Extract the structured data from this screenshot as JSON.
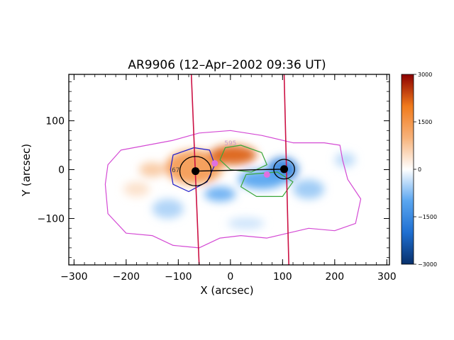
{
  "chart_data": {
    "type": "heatmap",
    "title": "AR9906 (12–Apr–2002 09:36 UT)",
    "xlabel": "X (arcsec)",
    "ylabel": "Y (arcsec)",
    "xlim": [
      -310,
      305
    ],
    "ylim": [
      -195,
      195
    ],
    "x_ticks": [
      {
        "value": -300,
        "label": "−300"
      },
      {
        "value": -200,
        "label": "−200"
      },
      {
        "value": -100,
        "label": "−100"
      },
      {
        "value": 0,
        "label": "0"
      },
      {
        "value": 100,
        "label": "100"
      },
      {
        "value": 200,
        "label": "200"
      },
      {
        "value": 300,
        "label": "300"
      }
    ],
    "y_ticks": [
      {
        "value": 100,
        "label": "100"
      },
      {
        "value": 0,
        "label": "0"
      },
      {
        "value": -100,
        "label": "−100"
      }
    ],
    "colorbar": {
      "range": [
        -3000,
        3000
      ],
      "ticks": [
        {
          "value": 3000,
          "label": "3000"
        },
        {
          "value": 1500,
          "label": "1500"
        },
        {
          "value": 0,
          "label": "0"
        },
        {
          "value": -1500,
          "label": "−1500"
        },
        {
          "value": -3000,
          "label": "−3000"
        }
      ],
      "colors": [
        "#08306b",
        "#1f6fd1",
        "#5aa6f0",
        "#ffffff",
        "#f7b27a",
        "#f07a1c",
        "#8b0000"
      ]
    },
    "field_blobs": [
      {
        "cx": -70,
        "cy": 5,
        "rx": 55,
        "ry": 35,
        "value": 1400
      },
      {
        "cx": 5,
        "cy": 30,
        "rx": 45,
        "ry": 20,
        "value": 2200
      },
      {
        "cx": -150,
        "cy": 0,
        "rx": 25,
        "ry": 15,
        "value": 700
      },
      {
        "cx": 100,
        "cy": 0,
        "rx": 30,
        "ry": 25,
        "value": -1600
      },
      {
        "cx": 60,
        "cy": -20,
        "rx": 45,
        "ry": 20,
        "value": -1000
      },
      {
        "cx": -20,
        "cy": -50,
        "rx": 30,
        "ry": 15,
        "value": -900
      },
      {
        "cx": 150,
        "cy": -40,
        "rx": 30,
        "ry": 20,
        "value": -600
      },
      {
        "cx": -120,
        "cy": -80,
        "rx": 30,
        "ry": 20,
        "value": -500
      },
      {
        "cx": -180,
        "cy": -40,
        "rx": 25,
        "ry": 15,
        "value": 400
      },
      {
        "cx": 220,
        "cy": 20,
        "rx": 20,
        "ry": 15,
        "value": -400
      },
      {
        "cx": 30,
        "cy": -110,
        "rx": 35,
        "ry": 12,
        "value": -300
      }
    ],
    "contours": {
      "outer": {
        "color": "#d44ad4",
        "points": [
          [
            -240,
            -30
          ],
          [
            -235,
            -90
          ],
          [
            -200,
            -130
          ],
          [
            -150,
            -135
          ],
          [
            -110,
            -155
          ],
          [
            -60,
            -160
          ],
          [
            -20,
            -140
          ],
          [
            20,
            -135
          ],
          [
            70,
            -140
          ],
          [
            110,
            -130
          ],
          [
            150,
            -120
          ],
          [
            200,
            -125
          ],
          [
            240,
            -110
          ],
          [
            250,
            -60
          ],
          [
            225,
            -20
          ],
          [
            215,
            20
          ],
          [
            210,
            50
          ],
          [
            180,
            55
          ],
          [
            120,
            55
          ],
          [
            60,
            70
          ],
          [
            0,
            80
          ],
          [
            -60,
            75
          ],
          [
            -110,
            60
          ],
          [
            -160,
            50
          ],
          [
            -210,
            40
          ],
          [
            -235,
            10
          ]
        ]
      },
      "inner_green": {
        "color": "#3aa63a",
        "points": [
          [
            -10,
            45
          ],
          [
            20,
            50
          ],
          [
            60,
            35
          ],
          [
            70,
            10
          ],
          [
            40,
            -5
          ],
          [
            0,
            0
          ],
          [
            -20,
            20
          ]
        ]
      },
      "inner_green_2": {
        "color": "#3aa63a",
        "points": [
          [
            30,
            -10
          ],
          [
            90,
            -5
          ],
          [
            120,
            -25
          ],
          [
            100,
            -55
          ],
          [
            50,
            -55
          ],
          [
            20,
            -35
          ]
        ]
      },
      "blue_loop_left": {
        "color": "#1a1acc",
        "points": [
          [
            -110,
            30
          ],
          [
            -70,
            45
          ],
          [
            -40,
            40
          ],
          [
            -30,
            10
          ],
          [
            -45,
            -25
          ],
          [
            -80,
            -45
          ],
          [
            -110,
            -30
          ],
          [
            -115,
            0
          ]
        ]
      }
    },
    "contour_labels": [
      {
        "x": 0,
        "y": 50,
        "text": "595",
        "color": "#c9a0c9"
      },
      {
        "x": -105,
        "y": -5,
        "text": "67",
        "color": "#444444"
      }
    ],
    "slit_lines": [
      {
        "x_top": -75,
        "x_bottom": -60,
        "color": "#cc1144"
      },
      {
        "x_top": 103,
        "x_bottom": 112,
        "color": "#cc1144"
      }
    ],
    "footpoints": {
      "left": {
        "x": -67,
        "y": -3
      },
      "right": {
        "x": 103,
        "y": 1
      },
      "color": "#000000"
    },
    "circles": [
      {
        "x": -67,
        "y": -3,
        "r": 30,
        "color": "#000000"
      },
      {
        "x": 103,
        "y": 1,
        "r": 20,
        "color": "#000000"
      }
    ],
    "magenta_dots": [
      {
        "x": -30,
        "y": 13
      },
      {
        "x": 70,
        "y": -10
      }
    ]
  }
}
